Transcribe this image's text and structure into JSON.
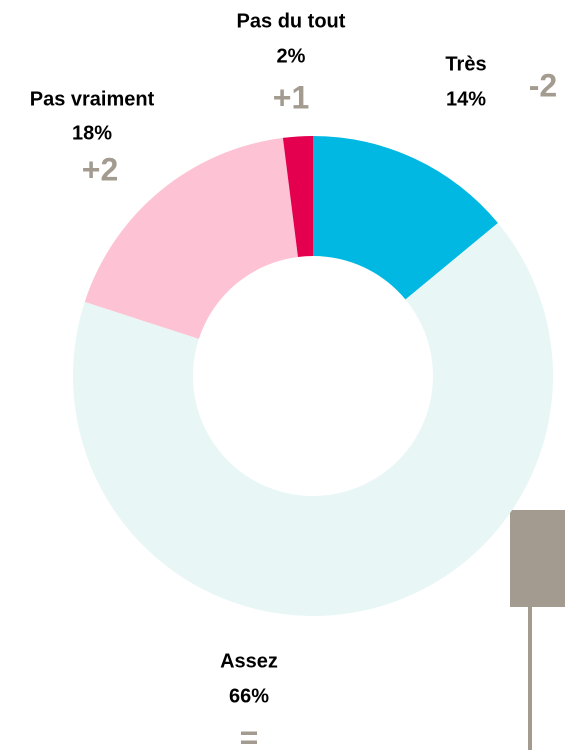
{
  "chart_data": {
    "type": "donut",
    "categories": [
      "Très",
      "Assez",
      "Pas vraiment",
      "Pas du tout"
    ],
    "values": [
      14,
      66,
      18,
      2
    ],
    "value_labels": [
      "14%",
      "66%",
      "18%",
      "2%"
    ],
    "changes": [
      "-2",
      "=",
      "+2",
      "+1"
    ],
    "colors": [
      "#00b8e2",
      "#e9f6f6",
      "#fdc3d4",
      "#e4004f"
    ]
  }
}
